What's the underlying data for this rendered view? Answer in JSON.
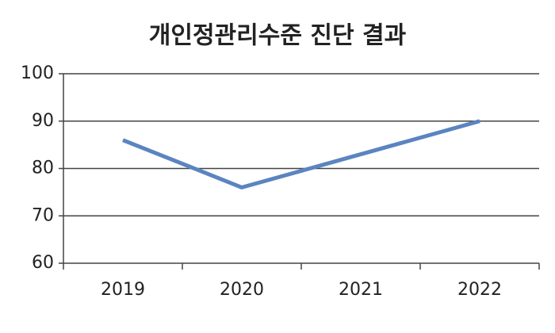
{
  "chart_data": {
    "type": "line",
    "title": "개인정관리수준 진단 결과",
    "categories": [
      "2019",
      "2020",
      "2021",
      "2022"
    ],
    "series": [
      {
        "name": null,
        "color": "#5b84c0",
        "values": [
          86,
          76,
          83,
          90
        ]
      }
    ],
    "ylim": [
      60,
      100
    ],
    "yticks": [
      60,
      70,
      80,
      90,
      100
    ],
    "grid": true
  }
}
